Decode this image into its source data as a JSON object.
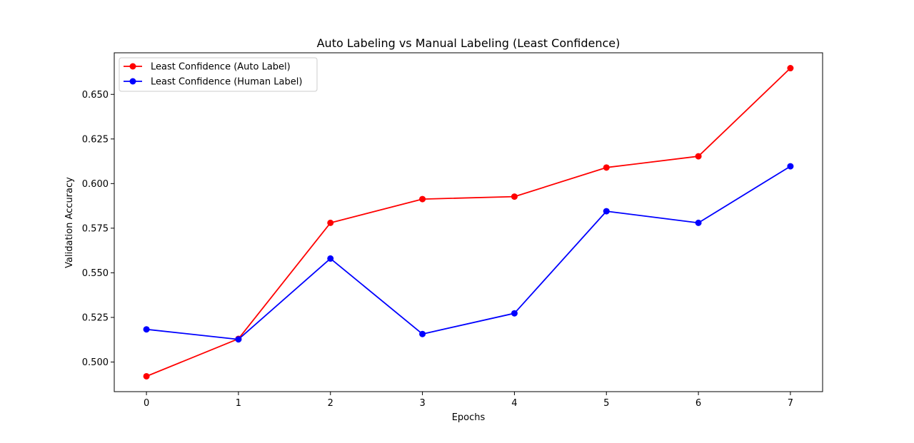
{
  "chart_data": {
    "type": "line",
    "title": "Auto Labeling vs Manual Labeling (Least Confidence)",
    "xlabel": "Epochs",
    "ylabel": "Validation Accuracy",
    "x": [
      0,
      1,
      2,
      3,
      4,
      5,
      6,
      7
    ],
    "xlim": [
      -0.35,
      7.35
    ],
    "ylim": [
      0.4834,
      0.6733
    ],
    "xticks": [
      0,
      1,
      2,
      3,
      4,
      5,
      6,
      7
    ],
    "xtick_labels": [
      "0",
      "1",
      "2",
      "3",
      "4",
      "5",
      "6",
      "7"
    ],
    "yticks": [
      0.5,
      0.525,
      0.55,
      0.575,
      0.6,
      0.625,
      0.65
    ],
    "ytick_labels": [
      "0.500",
      "0.525",
      "0.550",
      "0.575",
      "0.600",
      "0.625",
      "0.650"
    ],
    "grid": false,
    "legend_position": "top-left",
    "series": [
      {
        "name": "Least Confidence (Auto Label)",
        "color": "#ff0000",
        "marker": "circle",
        "values": [
          0.492,
          0.513,
          0.578,
          0.5913,
          0.5927,
          0.609,
          0.6153,
          0.6647
        ]
      },
      {
        "name": "Least Confidence (Human Label)",
        "color": "#0000ff",
        "marker": "circle",
        "values": [
          0.5183,
          0.5127,
          0.558,
          0.5157,
          0.5273,
          0.5845,
          0.578,
          0.6097
        ]
      }
    ]
  }
}
